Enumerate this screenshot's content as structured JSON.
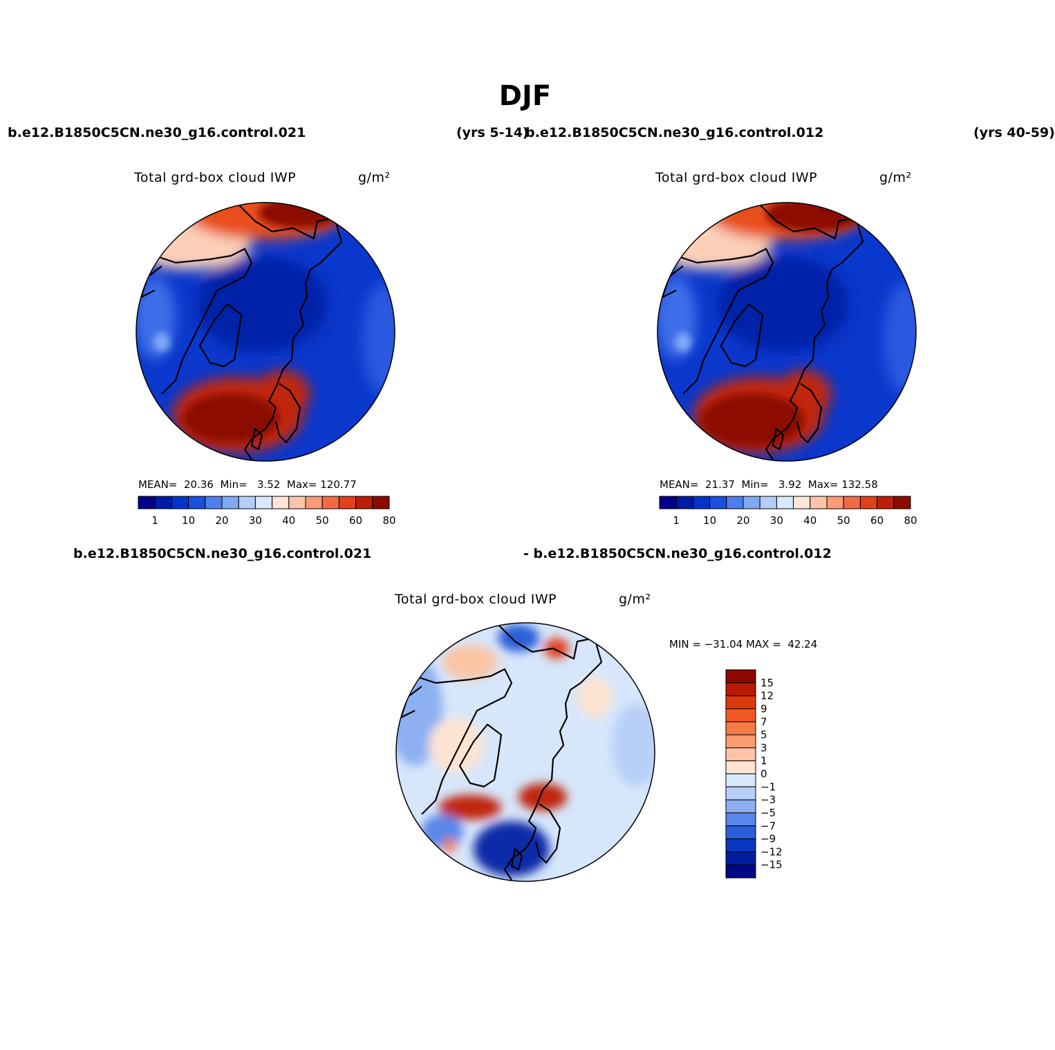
{
  "title": "DJF",
  "header": {
    "case1": "b.e12.B1850C5CN.ne30_g16.control.021",
    "case1_years": "(yrs 5-14)",
    "case2": "b.e12.B1850C5CN.ne30_g16.control.012",
    "case2_years": "(yrs 40-59)",
    "diff_case1": "b.e12.B1850C5CN.ne30_g16.control.021",
    "diff_case2": "- b.e12.B1850C5CN.ne30_g16.control.012"
  },
  "panels": {
    "left": {
      "variable": "Total grd-box cloud IWP",
      "units": "g/m²",
      "stats": "MEAN=  20.36  Min=   3.52  Max= 120.77"
    },
    "right": {
      "variable": "Total grd-box cloud IWP",
      "units": "g/m²",
      "stats": "MEAN=  21.37  Min=   3.92  Max= 132.58"
    },
    "diff": {
      "variable": "Total grd-box cloud IWP",
      "units": "g/m²",
      "stats": "MIN = −31.04 MAX =  42.24"
    }
  },
  "colorbars": {
    "abs": {
      "ticks": [
        "1",
        "10",
        "20",
        "30",
        "40",
        "50",
        "60",
        "80"
      ],
      "colors": [
        "#00008c",
        "#0019a8",
        "#0033cc",
        "#1a4fe0",
        "#4d7ef0",
        "#80a8f5",
        "#b3cef8",
        "#d9e8fb",
        "#fde5d8",
        "#fcc4a8",
        "#f99a78",
        "#f26a44",
        "#e2401a",
        "#bd1e08",
        "#8c0a00"
      ]
    },
    "diff": {
      "ticks": [
        "15",
        "12",
        "9",
        "7",
        "5",
        "3",
        "1",
        "0",
        "−1",
        "−3",
        "−5",
        "−7",
        "−9",
        "−12",
        "−15"
      ],
      "colors": [
        "#8c0a00",
        "#b71a05",
        "#dc3a0a",
        "#f05a25",
        "#f77a45",
        "#fa9c70",
        "#fcc4a5",
        "#fde4d2",
        "#d8e8fb",
        "#b8d0f7",
        "#8cb0f2",
        "#5a86e8",
        "#2a5ed8",
        "#0a38c0",
        "#001fa0",
        "#000a80"
      ]
    }
  },
  "chart_data": [
    {
      "type": "heatmap",
      "title": "Total grd-box cloud IWP",
      "units": "g/m²",
      "case": "b.e12.B1850C5CN.ne30_g16.control.021",
      "years": "(yrs 5-14)",
      "season": "DJF",
      "projection": "north polar stereographic",
      "mean": 20.36,
      "min": 3.52,
      "max": 120.77,
      "contour_levels": [
        1,
        5,
        10,
        15,
        20,
        25,
        30,
        35,
        40,
        45,
        50,
        55,
        60,
        70,
        80
      ]
    },
    {
      "type": "heatmap",
      "title": "Total grd-box cloud IWP",
      "units": "g/m²",
      "case": "b.e12.B1850C5CN.ne30_g16.control.012",
      "years": "(yrs 40-59)",
      "season": "DJF",
      "projection": "north polar stereographic",
      "mean": 21.37,
      "min": 3.92,
      "max": 132.58,
      "contour_levels": [
        1,
        5,
        10,
        15,
        20,
        25,
        30,
        35,
        40,
        45,
        50,
        55,
        60,
        70,
        80
      ]
    },
    {
      "type": "heatmap",
      "title": "Total grd-box cloud IWP",
      "units": "g/m²",
      "case": "b.e12.B1850C5CN.ne30_g16.control.021 - b.e12.B1850C5CN.ne30_g16.control.012",
      "season": "DJF",
      "projection": "north polar stereographic",
      "min": -31.04,
      "max": 42.24,
      "contour_levels": [
        -15,
        -12,
        -9,
        -7,
        -5,
        -3,
        -1,
        0,
        1,
        3,
        5,
        7,
        9,
        12,
        15
      ]
    }
  ]
}
